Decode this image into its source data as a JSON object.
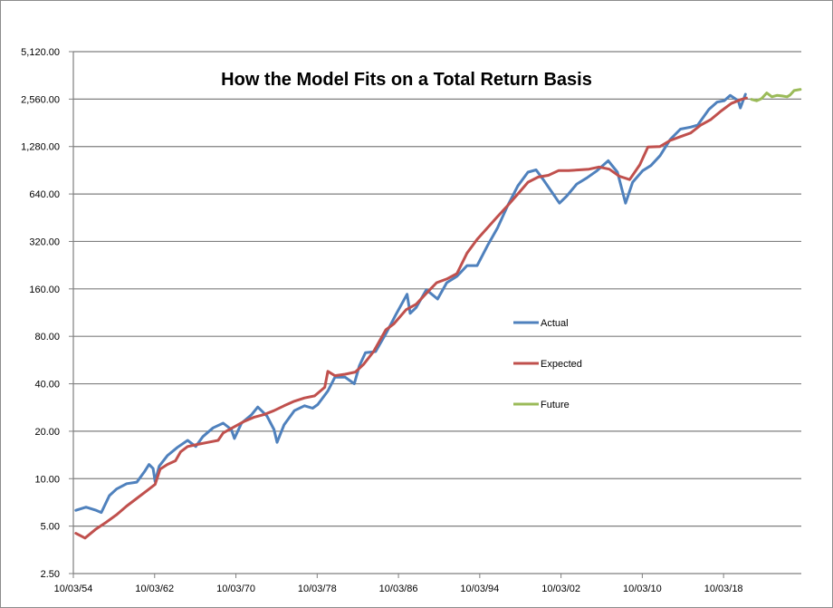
{
  "chart_data": {
    "type": "line",
    "title": "How the Model Fits on a Total Return Basis",
    "xlabel": "",
    "ylabel": "",
    "y_scale": "log2",
    "ylim": [
      2.5,
      5120
    ],
    "y_ticks": [
      "2.50",
      "5.00",
      "10.00",
      "20.00",
      "40.00",
      "80.00",
      "160.00",
      "320.00",
      "640.00",
      "1,280.00",
      "2,560.00",
      "5,120.00"
    ],
    "y_tick_values": [
      2.5,
      5,
      10,
      20,
      40,
      80,
      160,
      320,
      640,
      1280,
      2560,
      5120
    ],
    "x_ticks": [
      "10/03/54",
      "10/03/62",
      "10/03/70",
      "10/03/78",
      "10/03/86",
      "10/03/94",
      "10/03/02",
      "10/03/10",
      "10/03/18"
    ],
    "x_tick_values": [
      1954.75,
      1962.75,
      1970.75,
      1978.75,
      1986.75,
      1994.75,
      2002.75,
      2010.75,
      2018.75
    ],
    "xlim": [
      1954.75,
      2026.4
    ],
    "grid": "horizontal",
    "legend_position": "center-right",
    "series": [
      {
        "name": "Actual",
        "color": "#4f81bd",
        "points": [
          [
            1955.0,
            6.3
          ],
          [
            1956.0,
            6.6
          ],
          [
            1957.0,
            6.3
          ],
          [
            1957.5,
            6.1
          ],
          [
            1958.3,
            7.8
          ],
          [
            1959.0,
            8.6
          ],
          [
            1960.0,
            9.3
          ],
          [
            1961.0,
            9.5
          ],
          [
            1961.8,
            11.2
          ],
          [
            1962.2,
            12.3
          ],
          [
            1962.6,
            11.6
          ],
          [
            1962.8,
            9.6
          ],
          [
            1963.2,
            12.0
          ],
          [
            1964.0,
            14.0
          ],
          [
            1965.0,
            15.8
          ],
          [
            1966.0,
            17.5
          ],
          [
            1966.8,
            16.0
          ],
          [
            1967.5,
            18.5
          ],
          [
            1968.5,
            21.0
          ],
          [
            1969.5,
            22.5
          ],
          [
            1970.3,
            20.5
          ],
          [
            1970.6,
            18.0
          ],
          [
            1971.3,
            22.5
          ],
          [
            1972.3,
            25.5
          ],
          [
            1972.9,
            28.5
          ],
          [
            1973.8,
            25.0
          ],
          [
            1974.5,
            20.5
          ],
          [
            1974.8,
            17.0
          ],
          [
            1975.5,
            22.0
          ],
          [
            1976.5,
            27.0
          ],
          [
            1977.5,
            29.0
          ],
          [
            1978.3,
            28.0
          ],
          [
            1978.8,
            29.5
          ],
          [
            1979.8,
            36.0
          ],
          [
            1980.5,
            44.0
          ],
          [
            1981.5,
            44.0
          ],
          [
            1982.4,
            40.0
          ],
          [
            1982.9,
            52.0
          ],
          [
            1983.5,
            63.0
          ],
          [
            1984.5,
            64.0
          ],
          [
            1985.5,
            83.0
          ],
          [
            1986.5,
            110.0
          ],
          [
            1987.6,
            148.0
          ],
          [
            1987.9,
            112.0
          ],
          [
            1988.5,
            122.0
          ],
          [
            1989.5,
            158.0
          ],
          [
            1990.6,
            138.0
          ],
          [
            1991.5,
            175.0
          ],
          [
            1992.5,
            192.0
          ],
          [
            1993.5,
            225.0
          ],
          [
            1994.5,
            225.0
          ],
          [
            1995.5,
            300.0
          ],
          [
            1996.5,
            390.0
          ],
          [
            1997.5,
            540.0
          ],
          [
            1998.5,
            720.0
          ],
          [
            1999.5,
            880.0
          ],
          [
            2000.3,
            910.0
          ],
          [
            2001.0,
            790.0
          ],
          [
            2001.7,
            680.0
          ],
          [
            2002.6,
            560.0
          ],
          [
            2003.3,
            620.0
          ],
          [
            2004.3,
            740.0
          ],
          [
            2005.3,
            810.0
          ],
          [
            2006.3,
            900.0
          ],
          [
            2007.4,
            1040.0
          ],
          [
            2008.3,
            880.0
          ],
          [
            2009.1,
            560.0
          ],
          [
            2009.8,
            760.0
          ],
          [
            2010.8,
            900.0
          ],
          [
            2011.6,
            970.0
          ],
          [
            2012.5,
            1120.0
          ],
          [
            2013.5,
            1420.0
          ],
          [
            2014.5,
            1650.0
          ],
          [
            2015.5,
            1700.0
          ],
          [
            2016.2,
            1750.0
          ],
          [
            2017.3,
            2200.0
          ],
          [
            2018.1,
            2450.0
          ],
          [
            2018.8,
            2500.0
          ],
          [
            2019.4,
            2700.0
          ],
          [
            2020.2,
            2500.0
          ],
          [
            2020.4,
            2250.0
          ],
          [
            2020.9,
            2750.0
          ]
        ]
      },
      {
        "name": "Expected",
        "color": "#c0504d",
        "points": [
          [
            1955.0,
            4.5
          ],
          [
            1955.9,
            4.2
          ],
          [
            1957.0,
            4.8
          ],
          [
            1958.0,
            5.3
          ],
          [
            1959.0,
            5.9
          ],
          [
            1960.0,
            6.7
          ],
          [
            1961.0,
            7.5
          ],
          [
            1962.0,
            8.4
          ],
          [
            1962.8,
            9.2
          ],
          [
            1963.3,
            11.5
          ],
          [
            1964.0,
            12.3
          ],
          [
            1964.8,
            13.0
          ],
          [
            1965.3,
            14.8
          ],
          [
            1966.0,
            16.0
          ],
          [
            1967.0,
            16.5
          ],
          [
            1968.0,
            17.0
          ],
          [
            1969.0,
            17.5
          ],
          [
            1969.5,
            19.5
          ],
          [
            1970.4,
            21.0
          ],
          [
            1971.5,
            23.0
          ],
          [
            1972.5,
            24.5
          ],
          [
            1973.5,
            25.5
          ],
          [
            1974.5,
            27.0
          ],
          [
            1975.5,
            29.0
          ],
          [
            1976.5,
            31.0
          ],
          [
            1977.5,
            32.5
          ],
          [
            1978.5,
            33.5
          ],
          [
            1979.5,
            38.0
          ],
          [
            1979.8,
            48.0
          ],
          [
            1980.5,
            45.0
          ],
          [
            1981.5,
            46.0
          ],
          [
            1982.5,
            47.5
          ],
          [
            1983.3,
            53.0
          ],
          [
            1984.3,
            64.0
          ],
          [
            1985.5,
            88.0
          ],
          [
            1986.3,
            96.0
          ],
          [
            1987.5,
            118.0
          ],
          [
            1988.5,
            128.0
          ],
          [
            1989.5,
            150.0
          ],
          [
            1990.5,
            175.0
          ],
          [
            1991.5,
            185.0
          ],
          [
            1992.5,
            200.0
          ],
          [
            1993.5,
            270.0
          ],
          [
            1994.5,
            330.0
          ],
          [
            1995.5,
            390.0
          ],
          [
            1996.5,
            460.0
          ],
          [
            1997.5,
            540.0
          ],
          [
            1998.5,
            640.0
          ],
          [
            1999.5,
            760.0
          ],
          [
            2000.5,
            820.0
          ],
          [
            2001.5,
            840.0
          ],
          [
            2002.5,
            900.0
          ],
          [
            2003.5,
            900.0
          ],
          [
            2004.5,
            910.0
          ],
          [
            2005.5,
            920.0
          ],
          [
            2006.5,
            950.0
          ],
          [
            2007.5,
            920.0
          ],
          [
            2008.5,
            830.0
          ],
          [
            2009.5,
            790.0
          ],
          [
            2010.5,
            980.0
          ],
          [
            2011.3,
            1270.0
          ],
          [
            2012.5,
            1280.0
          ],
          [
            2013.5,
            1400.0
          ],
          [
            2014.5,
            1480.0
          ],
          [
            2015.5,
            1560.0
          ],
          [
            2016.5,
            1750.0
          ],
          [
            2017.5,
            1900.0
          ],
          [
            2018.5,
            2150.0
          ],
          [
            2019.5,
            2400.0
          ],
          [
            2020.5,
            2550.0
          ],
          [
            2021.0,
            2600.0
          ]
        ]
      },
      {
        "name": "Future",
        "color": "#9bbb59",
        "points": [
          [
            2021.5,
            2550.0
          ],
          [
            2022.0,
            2500.0
          ],
          [
            2022.5,
            2580.0
          ],
          [
            2023.0,
            2800.0
          ],
          [
            2023.5,
            2650.0
          ],
          [
            2024.0,
            2700.0
          ],
          [
            2024.5,
            2680.0
          ],
          [
            2025.0,
            2650.0
          ],
          [
            2025.3,
            2720.0
          ],
          [
            2025.7,
            2900.0
          ],
          [
            2026.3,
            2950.0
          ]
        ]
      }
    ]
  }
}
